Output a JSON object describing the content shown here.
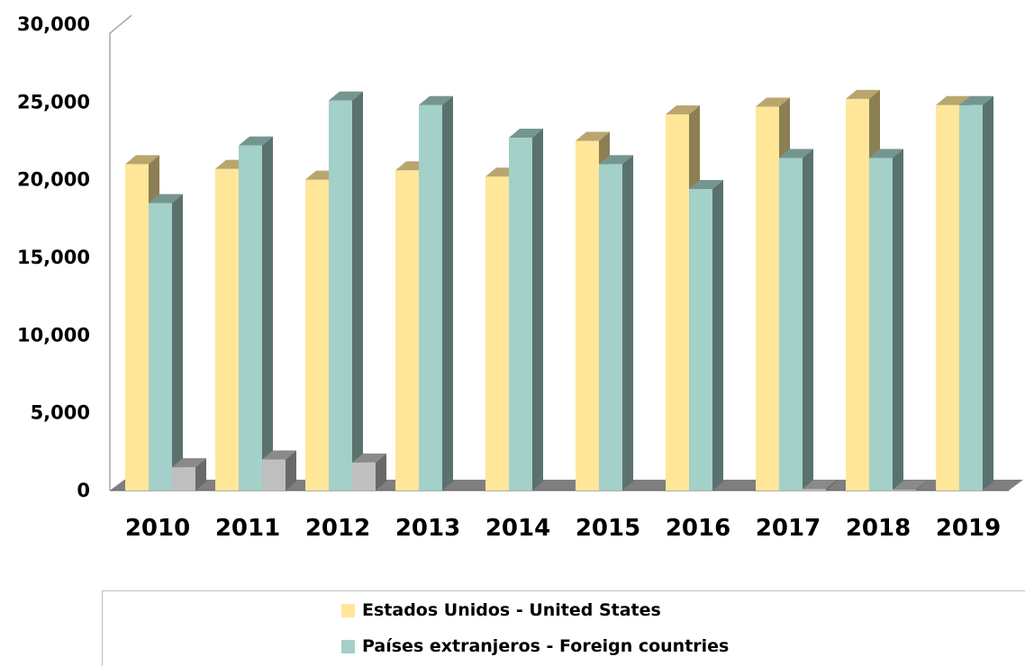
{
  "chart_data": {
    "type": "bar",
    "categories": [
      "2010",
      "2011",
      "2012",
      "2013",
      "2014",
      "2015",
      "2016",
      "2017",
      "2018",
      "2019"
    ],
    "series": [
      {
        "name": "Estados Unidos - United States",
        "color": "#ffe699",
        "values": [
          21000,
          20700,
          20000,
          20600,
          20200,
          22500,
          24200,
          24700,
          25200,
          24800
        ]
      },
      {
        "name": "Países extranjeros - Foreign countries",
        "color": "#a3d0c8",
        "values": [
          18500,
          22200,
          25100,
          24800,
          22700,
          21000,
          19400,
          21400,
          21400,
          24800
        ]
      },
      {
        "name": "",
        "color": "#bfbfbf",
        "values": [
          1500,
          2000,
          1800,
          0,
          0,
          0,
          0,
          100,
          50,
          0
        ]
      }
    ],
    "y_ticks": [
      "0",
      "5,000",
      "10,000",
      "15,000",
      "20,000",
      "25,000",
      "30,000"
    ],
    "ylim": [
      0,
      30000
    ],
    "grid": false,
    "legend_position": "bottom"
  },
  "legend": {
    "items": [
      {
        "label": "Estados Unidos - United States",
        "color": "#ffe699"
      },
      {
        "label": "Países extranjeros - Foreign countries",
        "color": "#a3d0c8"
      }
    ]
  }
}
